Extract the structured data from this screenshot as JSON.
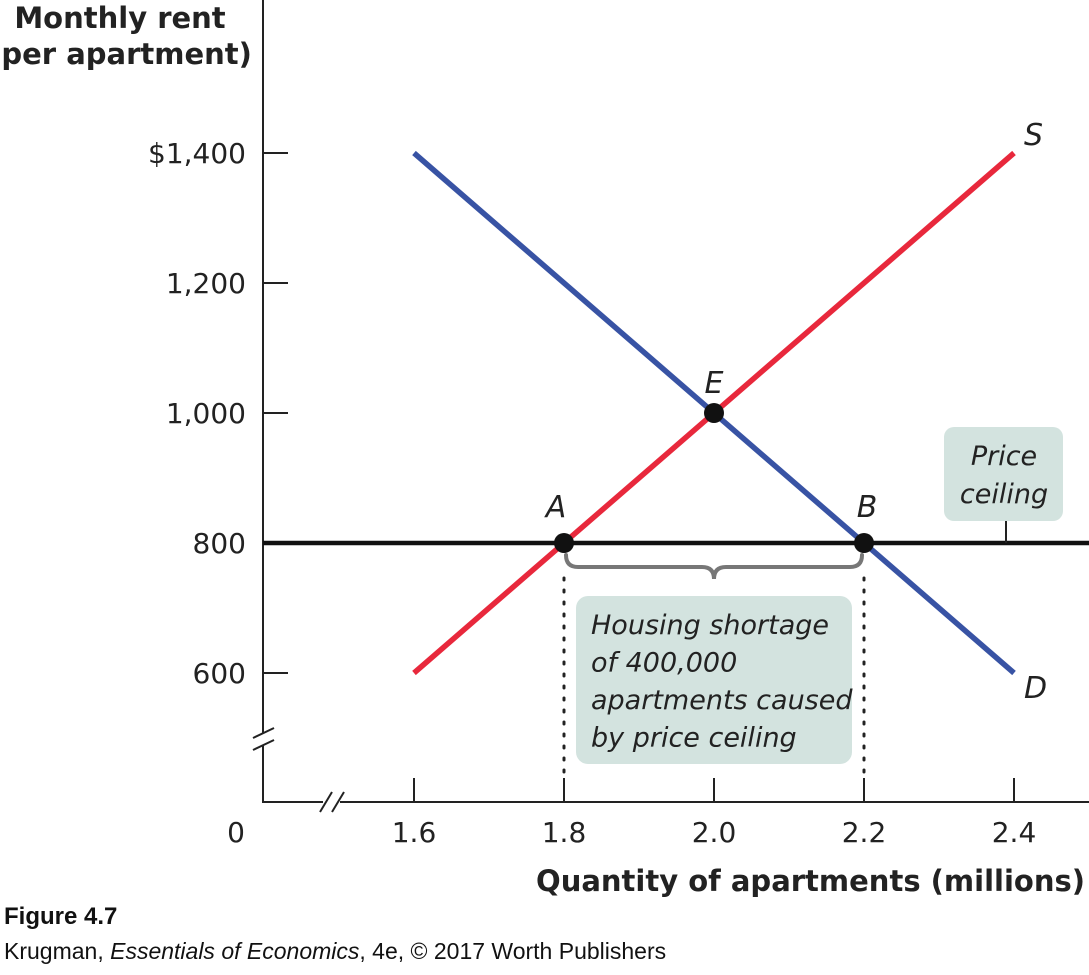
{
  "chart_data": {
    "type": "line",
    "ylabel_lines": [
      "Monthly rent",
      "(per apartment)"
    ],
    "xlabel": "Quantity of apartments (millions)",
    "origin_label": "0",
    "xlim": [
      1.6,
      2.4
    ],
    "ylim": [
      600,
      1400
    ],
    "x_axis_break": true,
    "y_axis_break": true,
    "x_ticks": [
      {
        "value": 1.6,
        "label": "1.6"
      },
      {
        "value": 1.8,
        "label": "1.8"
      },
      {
        "value": 2.0,
        "label": "2.0"
      },
      {
        "value": 2.2,
        "label": "2.2"
      },
      {
        "value": 2.4,
        "label": "2.4"
      }
    ],
    "y_ticks": [
      {
        "value": 1400,
        "label": "$1,400"
      },
      {
        "value": 1200,
        "label": "1,200"
      },
      {
        "value": 1000,
        "label": "1,000"
      },
      {
        "value": 800,
        "label": "800"
      },
      {
        "value": 600,
        "label": "600"
      }
    ],
    "series": [
      {
        "name": "S",
        "color": "#e8283c",
        "points": [
          [
            1.6,
            600
          ],
          [
            2.4,
            1400
          ]
        ]
      },
      {
        "name": "D",
        "color": "#3853a4",
        "points": [
          [
            1.6,
            1400
          ],
          [
            2.4,
            600
          ]
        ]
      }
    ],
    "price_ceiling": {
      "value": 800,
      "color": "#111111",
      "label_lines": [
        "Price",
        "ceiling"
      ]
    },
    "points": [
      {
        "label": "E",
        "x": 2.0,
        "y": 1000
      },
      {
        "label": "A",
        "x": 1.8,
        "y": 800
      },
      {
        "label": "B",
        "x": 2.2,
        "y": 800
      }
    ],
    "shortage": {
      "from": 1.8,
      "to": 2.2,
      "text_lines": [
        "Housing shortage",
        "of 400,000",
        "apartments caused",
        "by price ceiling"
      ]
    },
    "colors": {
      "annotation_box": "#d3e3df",
      "brace": "#777777",
      "axis": "#222222"
    }
  },
  "caption": {
    "figure": "Figure 4.7",
    "credit_prefix": "Krugman, ",
    "credit_title": "Essentials of Economics",
    "credit_suffix": ", 4e, © 2017 Worth Publishers"
  }
}
